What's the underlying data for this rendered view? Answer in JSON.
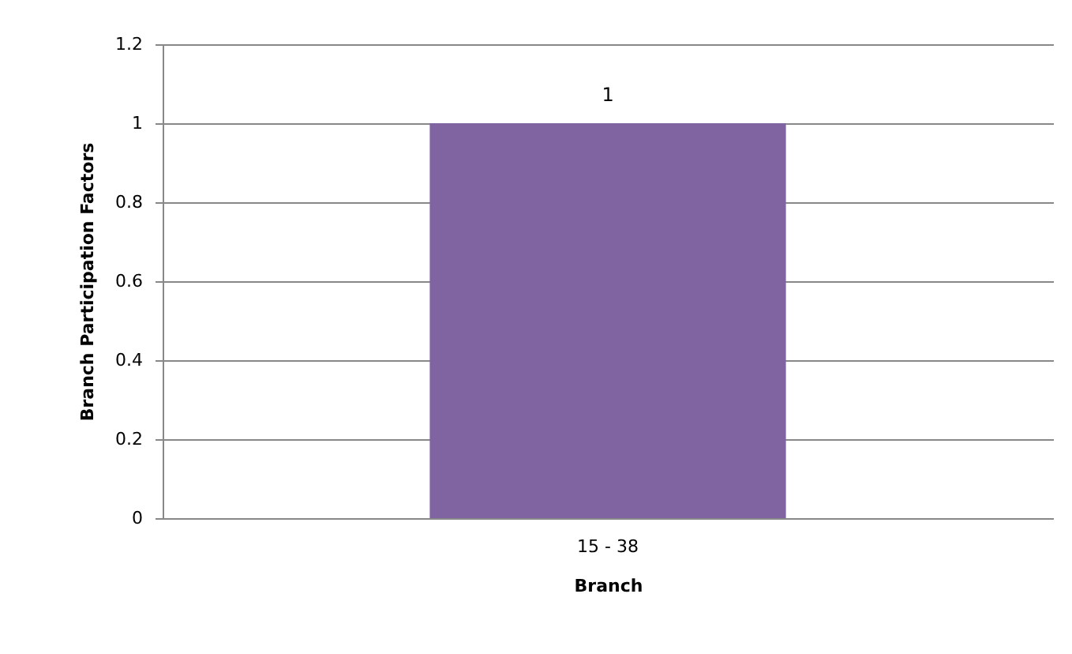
{
  "chart_data": {
    "type": "bar",
    "xlabel": "Branch",
    "ylabel": "Branch Participation Factors",
    "categories": [
      "15 - 38"
    ],
    "series": [
      {
        "color": "#8064a2",
        "values": [
          1
        ]
      }
    ],
    "ylim": [
      0,
      1.2
    ],
    "yticks": [
      0,
      0.2,
      0.4,
      0.6,
      0.8,
      1,
      1.2
    ],
    "grid": "y",
    "data_labels": true
  }
}
